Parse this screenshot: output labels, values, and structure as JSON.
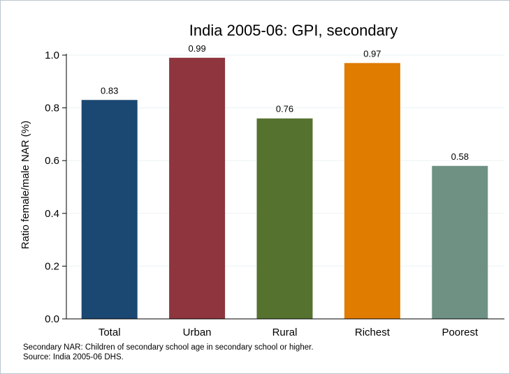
{
  "chart_data": {
    "type": "bar",
    "title": "India 2005-06: GPI, secondary",
    "xlabel": "",
    "ylabel": "Ratio female/male NAR (%)",
    "ylim": [
      0,
      1.0
    ],
    "yticks": [
      "0.0",
      "0.2",
      "0.4",
      "0.6",
      "0.8",
      "1.0"
    ],
    "grid": true,
    "categories": [
      "Total",
      "Urban",
      "Rural",
      "Richest",
      "Poorest"
    ],
    "values": [
      0.83,
      0.99,
      0.76,
      0.97,
      0.58
    ],
    "value_labels": [
      "0.83",
      "0.99",
      "0.76",
      "0.97",
      "0.58"
    ],
    "colors": [
      "#1b4872",
      "#8e353d",
      "#55722f",
      "#e07c00",
      "#6e9184"
    ],
    "notes": [
      "Secondary NAR: Children of secondary school age in secondary school or higher.",
      "Source: India 2005-06 DHS."
    ]
  }
}
